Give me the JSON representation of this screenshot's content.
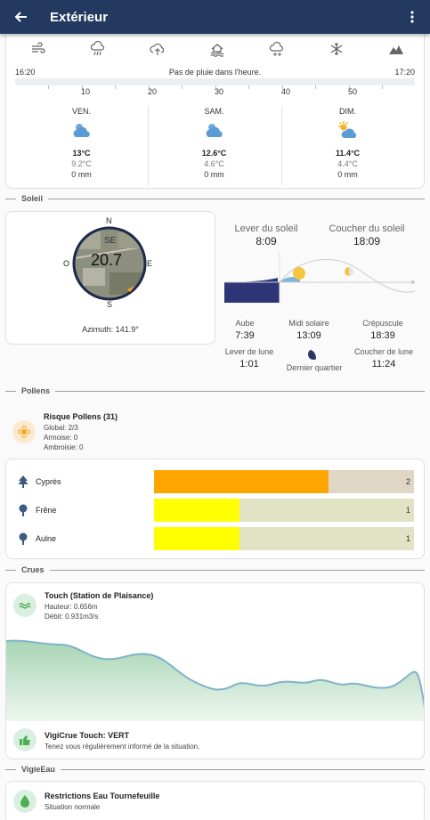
{
  "header": {
    "title": "Extérieur",
    "back_icon": "arrow-left-icon",
    "menu_icon": "dots-vertical-icon",
    "color": "#24395f"
  },
  "weather_icons": [
    "wind-icon",
    "rain-icon",
    "cloud-upload-icon",
    "home-flood-icon",
    "snow-cloud-icon",
    "snowflake-icon",
    "mountain-icon"
  ],
  "rain": {
    "start": "16:20",
    "message": "Pas de pluie dans l'heure.",
    "end": "17:20",
    "ticks": [
      "10",
      "20",
      "30",
      "40",
      "50"
    ]
  },
  "forecast": [
    {
      "day": "VEN.",
      "icon": "cloudy-icon",
      "tmax": "13°C",
      "tmin": "9.2°C",
      "rain": "0 mm"
    },
    {
      "day": "SAM.",
      "icon": "cloudy-icon",
      "tmax": "12.6°C",
      "tmin": "4.6°C",
      "rain": "0 mm"
    },
    {
      "day": "DIM.",
      "icon": "partly-sunny-icon",
      "tmax": "11.4°C",
      "tmin": "4.4°C",
      "rain": "0 mm"
    }
  ],
  "soleil": {
    "section": "Soleil",
    "compass": {
      "n": "N",
      "s": "S",
      "e": "E",
      "o": "O",
      "direction": "SE",
      "value": "20.7",
      "azimuth": "Azimuth: 141.9°"
    },
    "lever_label": "Lever du soleil",
    "lever": "8:09",
    "coucher_label": "Coucher du soleil",
    "coucher": "18:09",
    "aube_label": "Aube",
    "aube": "7:39",
    "midi_label": "Midi solaire",
    "midi": "13:09",
    "crepuscule_label": "Crépuscule",
    "crepuscule": "18:39",
    "lever_lune_label": "Lever de lune",
    "lever_lune": "1:01",
    "phase": "Dernier quartier",
    "coucher_lune_label": "Coucher de lune",
    "coucher_lune": "11:24"
  },
  "pollens": {
    "section": "Pollens",
    "title": "Risque Pollens (31)",
    "global": "Global: 2/3",
    "armoise": "Armoise: 0",
    "ambroisie": "Ambroisie: 0",
    "items": [
      {
        "name": "Cyprès",
        "value": "2",
        "level": 0.67,
        "color": "#ffa500",
        "icon": "pine-tree-icon"
      },
      {
        "name": "Frêne",
        "value": "1",
        "level": 0.33,
        "color": "#ffff00",
        "icon": "tree-icon"
      },
      {
        "name": "Aulne",
        "value": "1",
        "level": 0.33,
        "color": "#ffff00",
        "icon": "tree-icon"
      }
    ]
  },
  "crues": {
    "section": "Crues",
    "station": "Touch (Station de Plaisance)",
    "hauteur": "Hauteur: 0.656m",
    "debit": "Débit: 0.931m3/s",
    "vigi_title": "VigiCrue Touch: VERT",
    "vigi_sub": "Tenez vous régulièrement informé de la situation."
  },
  "vigieau": {
    "section": "VigieEau",
    "title": "Restrictions Eau Tournefeuille",
    "sub": "Situation normale"
  }
}
